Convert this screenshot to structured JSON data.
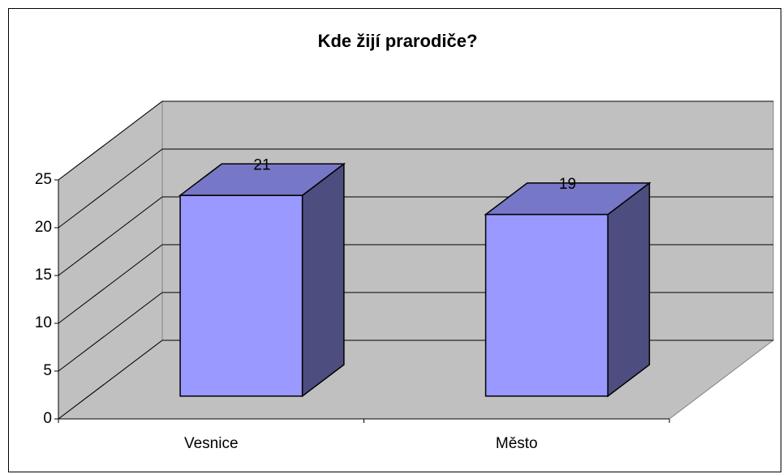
{
  "chart_data": {
    "type": "bar3d",
    "title": "Kde žijí prarodiče?",
    "categories": [
      "Vesnice",
      "Město"
    ],
    "values": [
      21,
      19
    ],
    "color": "#9999ff",
    "ylim": [
      0,
      25
    ],
    "yticks": [
      0,
      5,
      10,
      15,
      20,
      25
    ],
    "grid": true
  }
}
